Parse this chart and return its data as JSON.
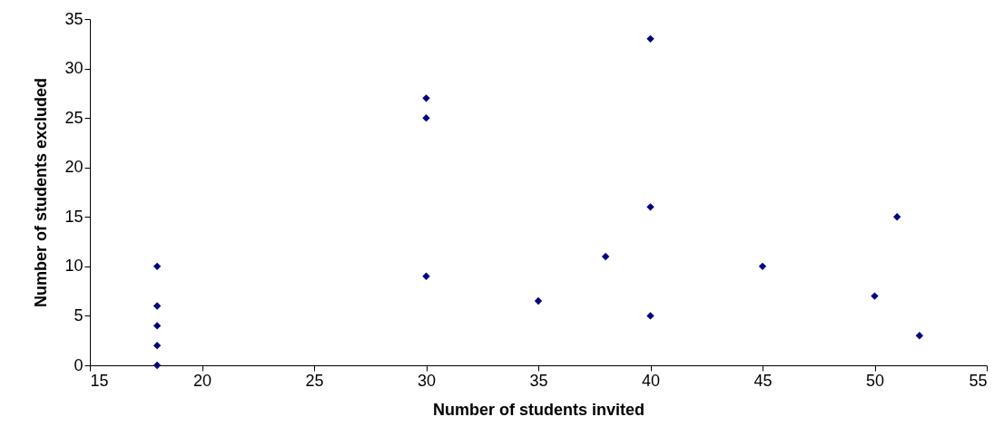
{
  "chart_data": {
    "type": "scatter",
    "xlabel": "Number of students invited",
    "ylabel": "Number of students excluded",
    "x": [
      18,
      18,
      18,
      18,
      18,
      30,
      30,
      30,
      35,
      38,
      40,
      40,
      40,
      45,
      50,
      51,
      52
    ],
    "values": [
      10,
      6,
      4,
      2,
      0,
      27,
      25,
      9,
      6.5,
      11,
      33,
      16,
      5,
      10,
      7,
      15,
      3
    ],
    "color": "#000080",
    "marker": "diamond",
    "grid": false,
    "xlim": [
      15,
      55
    ],
    "xticks": [
      15,
      20,
      25,
      30,
      35,
      40,
      45,
      50,
      55
    ],
    "ylim": [
      0,
      35
    ],
    "yticks": [
      0,
      5,
      10,
      15,
      20,
      25,
      30,
      35
    ]
  }
}
